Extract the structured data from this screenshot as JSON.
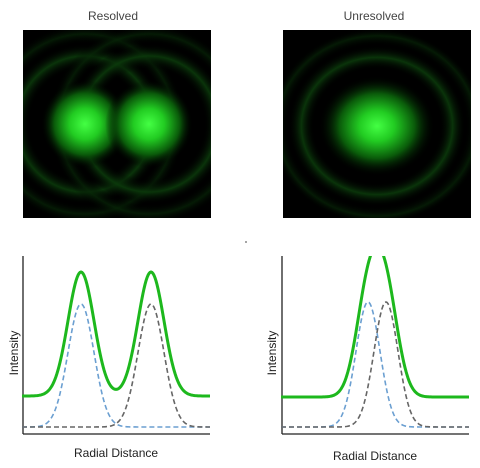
{
  "panels": {
    "left": {
      "title": "Resolved",
      "separation": "resolved"
    },
    "right": {
      "title": "Unresolved",
      "separation": "unresolved"
    }
  },
  "axes": {
    "ylabel": "Intensity",
    "xlabel": "Radial Distance"
  },
  "colors": {
    "sum_curve": "#1db81d",
    "component_a": "#6b9fd1",
    "component_b": "#666666",
    "baseline": "#333333",
    "airy_core": "#33ff33"
  }
}
